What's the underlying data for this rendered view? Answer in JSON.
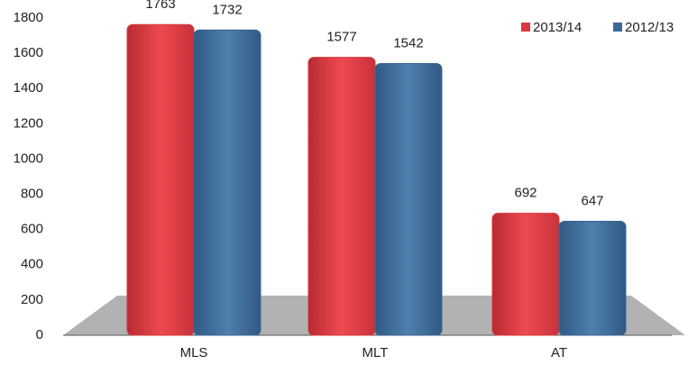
{
  "chart_data": {
    "type": "bar",
    "categories": [
      "MLS",
      "MLT",
      "AT"
    ],
    "series": [
      {
        "name": "2013/14",
        "color": "#d9383f",
        "values": [
          1763,
          1577,
          692
        ]
      },
      {
        "name": "2012/13",
        "color": "#3b6894",
        "values": [
          1732,
          1542,
          647
        ]
      }
    ],
    "ylim": [
      0,
      1800
    ],
    "yticks": [
      0,
      200,
      400,
      600,
      800,
      1000,
      1200,
      1400,
      1600,
      1800
    ],
    "legend": "top-right"
  }
}
